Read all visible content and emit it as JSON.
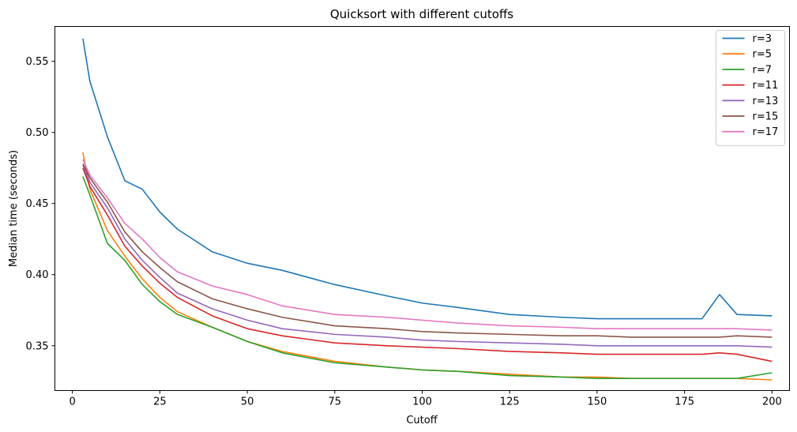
{
  "chart_data": {
    "type": "line",
    "title": "Quicksort with different cutoffs",
    "xlabel": "Cutoff",
    "ylabel": "Median time (seconds)",
    "xlim": [
      -5,
      205
    ],
    "ylim": [
      0.3185,
      0.5745
    ],
    "xticks": [
      0,
      25,
      50,
      75,
      100,
      125,
      150,
      175,
      200
    ],
    "xtick_labels": [
      "0",
      "25",
      "50",
      "75",
      "100",
      "125",
      "150",
      "175",
      "200"
    ],
    "yticks": [
      0.35,
      0.4,
      0.45,
      0.5,
      0.55
    ],
    "ytick_labels": [
      "0.35",
      "0.40",
      "0.45",
      "0.50",
      "0.55"
    ],
    "grid": false,
    "legend_position": "top-right",
    "x": [
      3,
      5,
      10,
      15,
      20,
      25,
      30,
      40,
      50,
      60,
      75,
      90,
      100,
      110,
      125,
      140,
      150,
      160,
      170,
      180,
      185,
      190,
      200
    ],
    "series": [
      {
        "name": "r=3",
        "color": "#1f77b4",
        "values": [
          0.566,
          0.536,
          0.497,
          0.466,
          0.46,
          0.444,
          0.432,
          0.416,
          0.408,
          0.403,
          0.393,
          0.385,
          0.38,
          0.377,
          0.372,
          0.37,
          0.369,
          0.369,
          0.369,
          0.369,
          0.386,
          0.372,
          0.371
        ]
      },
      {
        "name": "r=5",
        "color": "#ff7f0e",
        "values": [
          0.486,
          0.46,
          0.431,
          0.413,
          0.397,
          0.384,
          0.374,
          0.363,
          0.353,
          0.346,
          0.339,
          0.335,
          0.333,
          0.332,
          0.33,
          0.328,
          0.328,
          0.327,
          0.327,
          0.327,
          0.327,
          0.327,
          0.326
        ]
      },
      {
        "name": "r=7",
        "color": "#2ca02c",
        "values": [
          0.469,
          0.456,
          0.422,
          0.41,
          0.393,
          0.381,
          0.372,
          0.363,
          0.353,
          0.345,
          0.338,
          0.335,
          0.333,
          0.332,
          0.329,
          0.328,
          0.327,
          0.327,
          0.327,
          0.327,
          0.327,
          0.327,
          0.331
        ]
      },
      {
        "name": "r=11",
        "color": "#d62728",
        "values": [
          0.475,
          0.462,
          0.442,
          0.42,
          0.406,
          0.394,
          0.384,
          0.371,
          0.362,
          0.357,
          0.352,
          0.35,
          0.349,
          0.348,
          0.346,
          0.345,
          0.344,
          0.344,
          0.344,
          0.344,
          0.345,
          0.344,
          0.339
        ]
      },
      {
        "name": "r=13",
        "color": "#9467bd",
        "values": [
          0.477,
          0.465,
          0.447,
          0.425,
          0.41,
          0.398,
          0.387,
          0.376,
          0.368,
          0.362,
          0.358,
          0.356,
          0.354,
          0.353,
          0.352,
          0.351,
          0.35,
          0.35,
          0.35,
          0.35,
          0.35,
          0.35,
          0.349
        ]
      },
      {
        "name": "r=15",
        "color": "#8c564b",
        "values": [
          0.478,
          0.468,
          0.451,
          0.43,
          0.416,
          0.405,
          0.395,
          0.383,
          0.376,
          0.37,
          0.364,
          0.362,
          0.36,
          0.359,
          0.358,
          0.357,
          0.357,
          0.356,
          0.356,
          0.356,
          0.356,
          0.357,
          0.356
        ]
      },
      {
        "name": "r=17",
        "color": "#e377c2",
        "values": [
          0.481,
          0.47,
          0.454,
          0.436,
          0.425,
          0.412,
          0.402,
          0.392,
          0.386,
          0.378,
          0.372,
          0.37,
          0.368,
          0.366,
          0.364,
          0.363,
          0.362,
          0.362,
          0.362,
          0.362,
          0.362,
          0.362,
          0.361
        ]
      }
    ]
  }
}
